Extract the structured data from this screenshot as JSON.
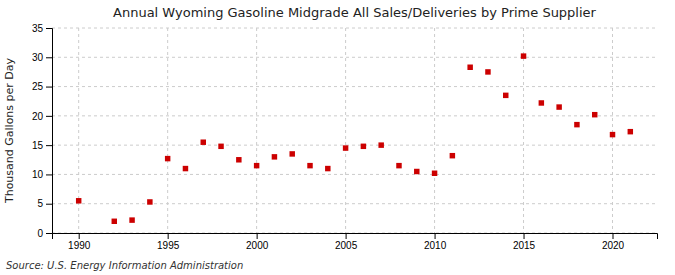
{
  "chart_data": {
    "type": "scatter",
    "title": "Annual Wyoming Gasoline Midgrade All Sales/Deliveries by Prime Supplier",
    "ylabel": "Thousand Gallons per Day",
    "source": "Source: U.S. Energy Information Administration",
    "x": [
      1990,
      1992,
      1993,
      1994,
      1995,
      1996,
      1997,
      1998,
      1999,
      2000,
      2001,
      2002,
      2003,
      2004,
      2005,
      2006,
      2007,
      2008,
      2009,
      2010,
      2011,
      2012,
      2013,
      2014,
      2015,
      2016,
      2017,
      2018,
      2019,
      2020,
      2021
    ],
    "values": [
      5.5,
      2.0,
      2.2,
      5.3,
      12.7,
      11.0,
      15.5,
      14.8,
      12.5,
      11.5,
      13.0,
      13.5,
      11.5,
      11.0,
      14.5,
      14.8,
      15.0,
      11.5,
      10.5,
      10.2,
      13.2,
      28.3,
      27.5,
      23.5,
      30.2,
      22.2,
      21.5,
      18.5,
      20.2,
      16.8,
      17.3
    ],
    "color": "#cc0000",
    "marker": "square",
    "xlim": [
      1988.5,
      2022.5
    ],
    "ylim": [
      0,
      35
    ],
    "xticks": [
      1990,
      1995,
      2000,
      2005,
      2010,
      2015,
      2020
    ],
    "yticks": [
      0,
      5,
      10,
      15,
      20,
      25,
      30,
      35
    ],
    "grid": true
  }
}
